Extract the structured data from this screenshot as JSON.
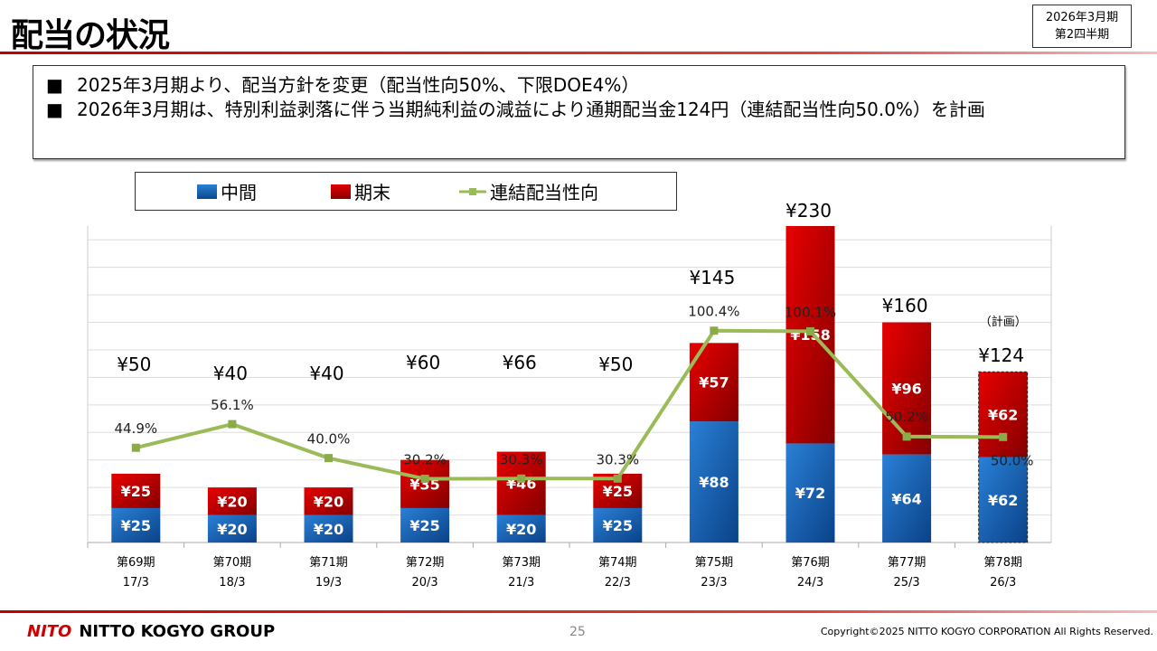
{
  "header": {
    "title": "配当の状況",
    "period_line1": "2026年3月期",
    "period_line2": "第2四半期"
  },
  "notes": [
    {
      "bullet": "■",
      "text": "2025年3月期より、配当方針を変更（配当性向50%、下限DOE4%）"
    },
    {
      "bullet": "■",
      "text": "2026年3月期は、特別利益剥落に伴う当期純利益の減益により通期配当金124円（連結配当性向50.0%）を計画"
    }
  ],
  "chart_data": {
    "type": "bar",
    "stacked": true,
    "categories": [
      "第69期\n17/3",
      "第70期\n18/3",
      "第71期\n19/3",
      "第72期\n20/3",
      "第73期\n21/3",
      "第74期\n22/3",
      "第75期\n23/3",
      "第76期\n24/3",
      "第77期\n25/3",
      "第78期\n26/3"
    ],
    "category_line1": [
      "第69期",
      "第70期",
      "第71期",
      "第72期",
      "第73期",
      "第74期",
      "第75期",
      "第76期",
      "第77期",
      "第78期"
    ],
    "category_line2": [
      "17/3",
      "18/3",
      "19/3",
      "20/3",
      "21/3",
      "22/3",
      "23/3",
      "24/3",
      "25/3",
      "26/3"
    ],
    "series": [
      {
        "name": "中間",
        "type": "bar",
        "color": "#1565b8",
        "values": [
          25,
          20,
          20,
          25,
          20,
          25,
          88,
          72,
          64,
          62
        ],
        "labels": [
          "¥25",
          "¥20",
          "¥20",
          "¥25",
          "¥20",
          "¥25",
          "¥88",
          "¥72",
          "¥64",
          "¥62"
        ]
      },
      {
        "name": "期末",
        "type": "bar",
        "color": "#c80000",
        "values": [
          25,
          20,
          20,
          35,
          46,
          25,
          57,
          158,
          96,
          62
        ],
        "labels": [
          "¥25",
          "¥20",
          "¥20",
          "¥35",
          "¥46",
          "¥25",
          "¥57",
          "¥158",
          "¥96",
          "¥62"
        ]
      },
      {
        "name": "連結配当性向",
        "type": "line",
        "axis": "secondary",
        "color": "#9bbb59",
        "values": [
          44.9,
          56.1,
          40.0,
          30.2,
          30.3,
          30.3,
          100.4,
          100.1,
          50.2,
          50.0
        ],
        "labels": [
          "44.9%",
          "56.1%",
          "40.0%",
          "30.2%",
          "30.3%",
          "30.3%",
          "100.4%",
          "100.1%",
          "50.2%",
          "50.0%"
        ]
      }
    ],
    "totals": [
      "¥50",
      "¥40",
      "¥40",
      "¥60",
      "¥66",
      "¥50",
      "¥145",
      "¥230",
      "¥160",
      "¥124"
    ],
    "plan_note": "（計画）",
    "plan_index": 9,
    "ylim": [
      0,
      230
    ],
    "y2lim": [
      0,
      150
    ],
    "grid": true,
    "legend": "top-left"
  },
  "footer": {
    "logo_mark": "NITO",
    "logo_text": "NITTO KOGYO GROUP",
    "page": "25",
    "copyright": "Copyright©2025 NITTO KOGYO CORPORATION All Rights Reserved."
  }
}
